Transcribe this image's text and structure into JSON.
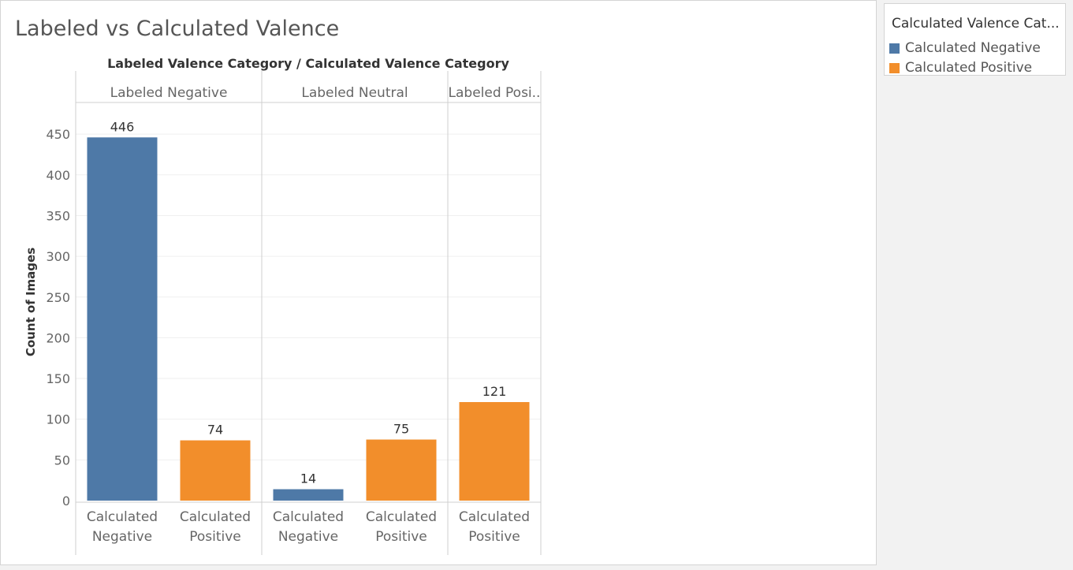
{
  "title": "Labeled vs Calculated Valence",
  "legend": {
    "title": "Calculated Valence Cat...",
    "items": [
      {
        "label": "Calculated Negative",
        "color": "#4e79a7"
      },
      {
        "label": "Calculated Positive",
        "color": "#f28e2b"
      }
    ]
  },
  "chart_data": {
    "type": "bar",
    "header": "Labeled Valence Category  /  Calculated Valence Category",
    "ylabel": "Count of Images",
    "ylim": [
      0,
      490
    ],
    "yticks": [
      0,
      50,
      100,
      150,
      200,
      250,
      300,
      350,
      400,
      450
    ],
    "grid": true,
    "groups": [
      {
        "label": "Labeled Negative",
        "bars": [
          {
            "category": [
              "Calculated",
              "Negative"
            ],
            "value": 446,
            "value_label": "446",
            "color": "#4e79a7"
          },
          {
            "category": [
              "Calculated",
              "Positive"
            ],
            "value": 74,
            "value_label": "74",
            "color": "#f28e2b"
          }
        ]
      },
      {
        "label": "Labeled Neutral",
        "bars": [
          {
            "category": [
              "Calculated",
              "Negative"
            ],
            "value": 14,
            "value_label": "14",
            "color": "#4e79a7"
          },
          {
            "category": [
              "Calculated",
              "Positive"
            ],
            "value": 75,
            "value_label": "75",
            "color": "#f28e2b"
          }
        ]
      },
      {
        "label": "Labeled Posi..",
        "bars": [
          {
            "category": [
              "Calculated",
              "Positive"
            ],
            "value": 121,
            "value_label": "121",
            "color": "#f28e2b"
          }
        ]
      }
    ]
  }
}
